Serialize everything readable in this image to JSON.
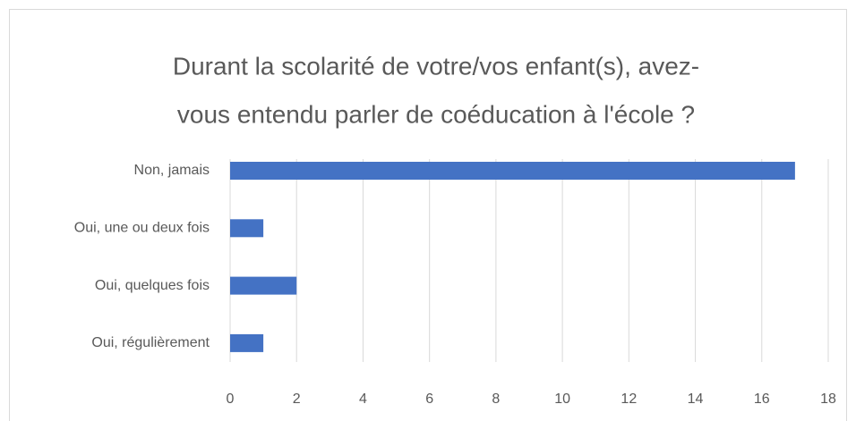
{
  "chart_data": {
    "type": "bar",
    "orientation": "horizontal",
    "title": [
      "Durant la scolarité de votre/vos enfant(s), avez-",
      "vous entendu parler de coéducation à l'école ?"
    ],
    "categories": [
      "Non, jamais",
      "Oui, une ou deux fois",
      "Oui, quelques fois",
      "Oui, régulièrement"
    ],
    "values": [
      17,
      1,
      2,
      1
    ],
    "color": "#4472c4",
    "xlim": [
      0,
      18
    ],
    "xticks": [
      0,
      2,
      4,
      6,
      8,
      10,
      12,
      14,
      16,
      18
    ],
    "grid": true
  }
}
